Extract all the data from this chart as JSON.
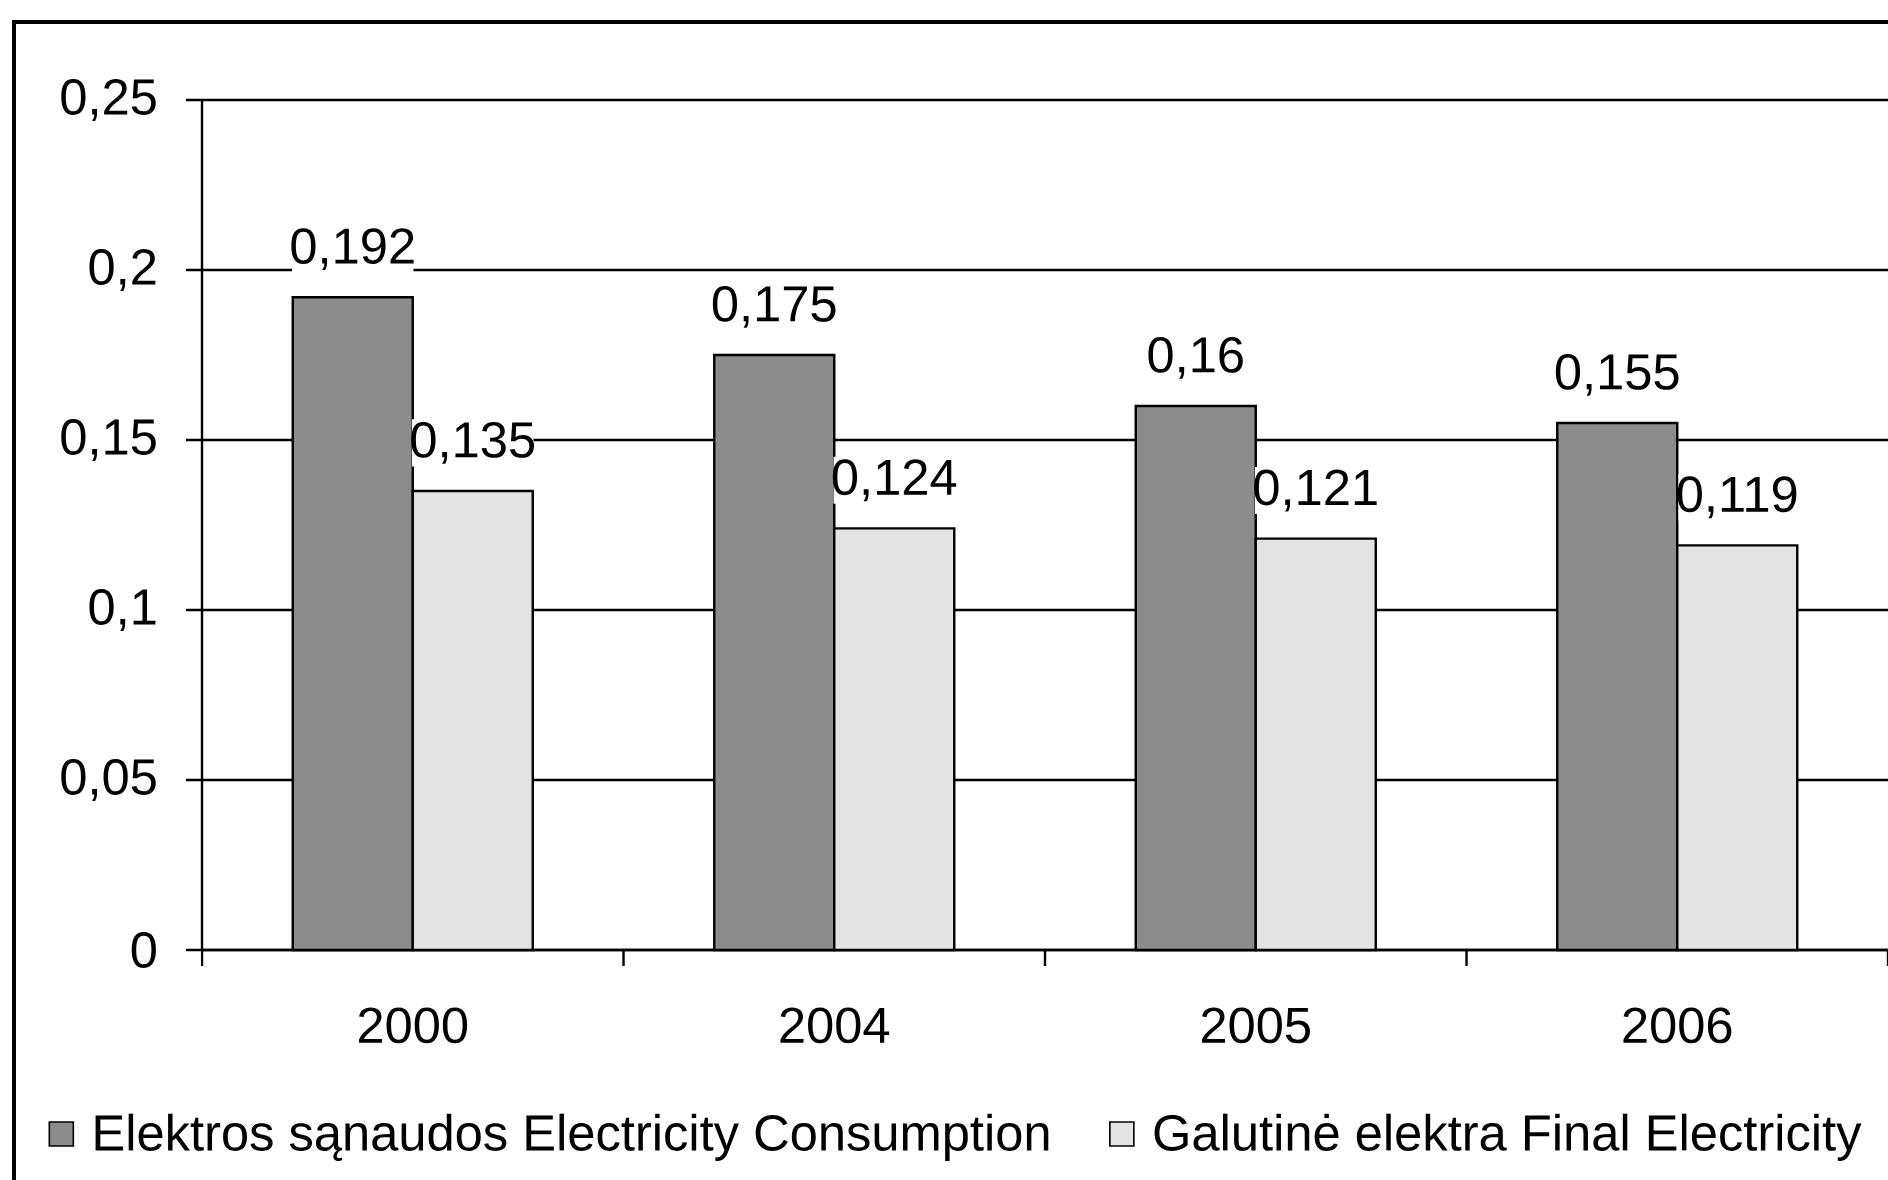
{
  "chart_data": {
    "type": "bar",
    "categories": [
      "2000",
      "2004",
      "2005",
      "2006"
    ],
    "series": [
      {
        "name": "Elektros sąnaudos Electricity Consumption",
        "color": "#8c8c8c",
        "values": [
          0.192,
          0.175,
          0.16,
          0.155
        ],
        "value_labels": [
          "0,192",
          "0,175",
          "0,16",
          "0,155"
        ]
      },
      {
        "name": "Galutinė elektra Final Electricity",
        "color": "#e3e3e3",
        "values": [
          0.135,
          0.124,
          0.121,
          0.119
        ],
        "value_labels": [
          "0,135",
          "0,124",
          "0,121",
          "0,119"
        ]
      }
    ],
    "ylim": [
      0,
      0.25
    ],
    "yticks": [
      0,
      {
        "value": 0.05,
        "label": "0,05"
      },
      {
        "value": 0.1,
        "label": "0,1"
      },
      {
        "value": 0.15,
        "label": "0,15"
      },
      {
        "value": 0.2,
        "label": "0,2"
      },
      {
        "value": 0.25,
        "label": "0,25"
      }
    ],
    "grid": "y",
    "legend": "bottom"
  }
}
